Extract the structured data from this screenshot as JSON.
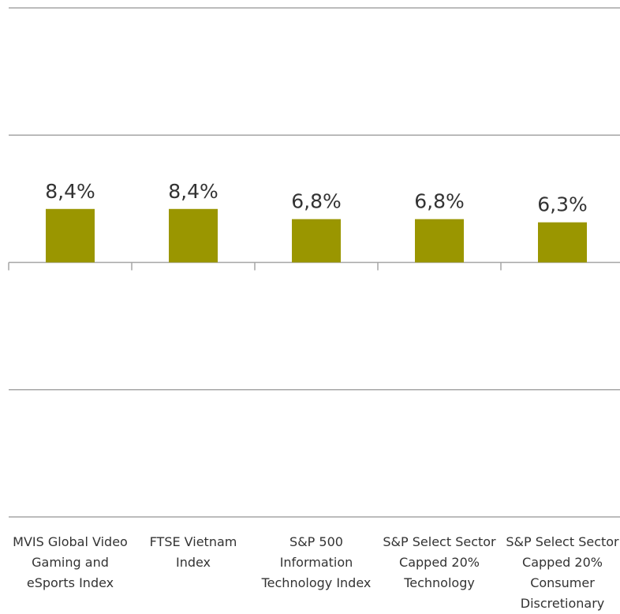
{
  "chart_data": {
    "type": "bar",
    "categories": [
      "MVIS Global Video Gaming and eSports Index",
      "FTSE Vietnam Index",
      "S&P 500 Information Technology Index",
      "S&P Select Sector Capped 20% Technology",
      "S&P Select Sector Capped 20% Consumer Discretionary"
    ],
    "values": [
      8.4,
      8.4,
      6.8,
      6.8,
      6.3
    ],
    "value_labels": [
      "8,4%",
      "8,4%",
      "6,8%",
      "6,8%",
      "6,3%"
    ],
    "color": "#9a9600",
    "ylim": [
      -40,
      40
    ],
    "yticks": [
      -40,
      -20,
      0,
      20,
      40
    ],
    "grid": true
  }
}
